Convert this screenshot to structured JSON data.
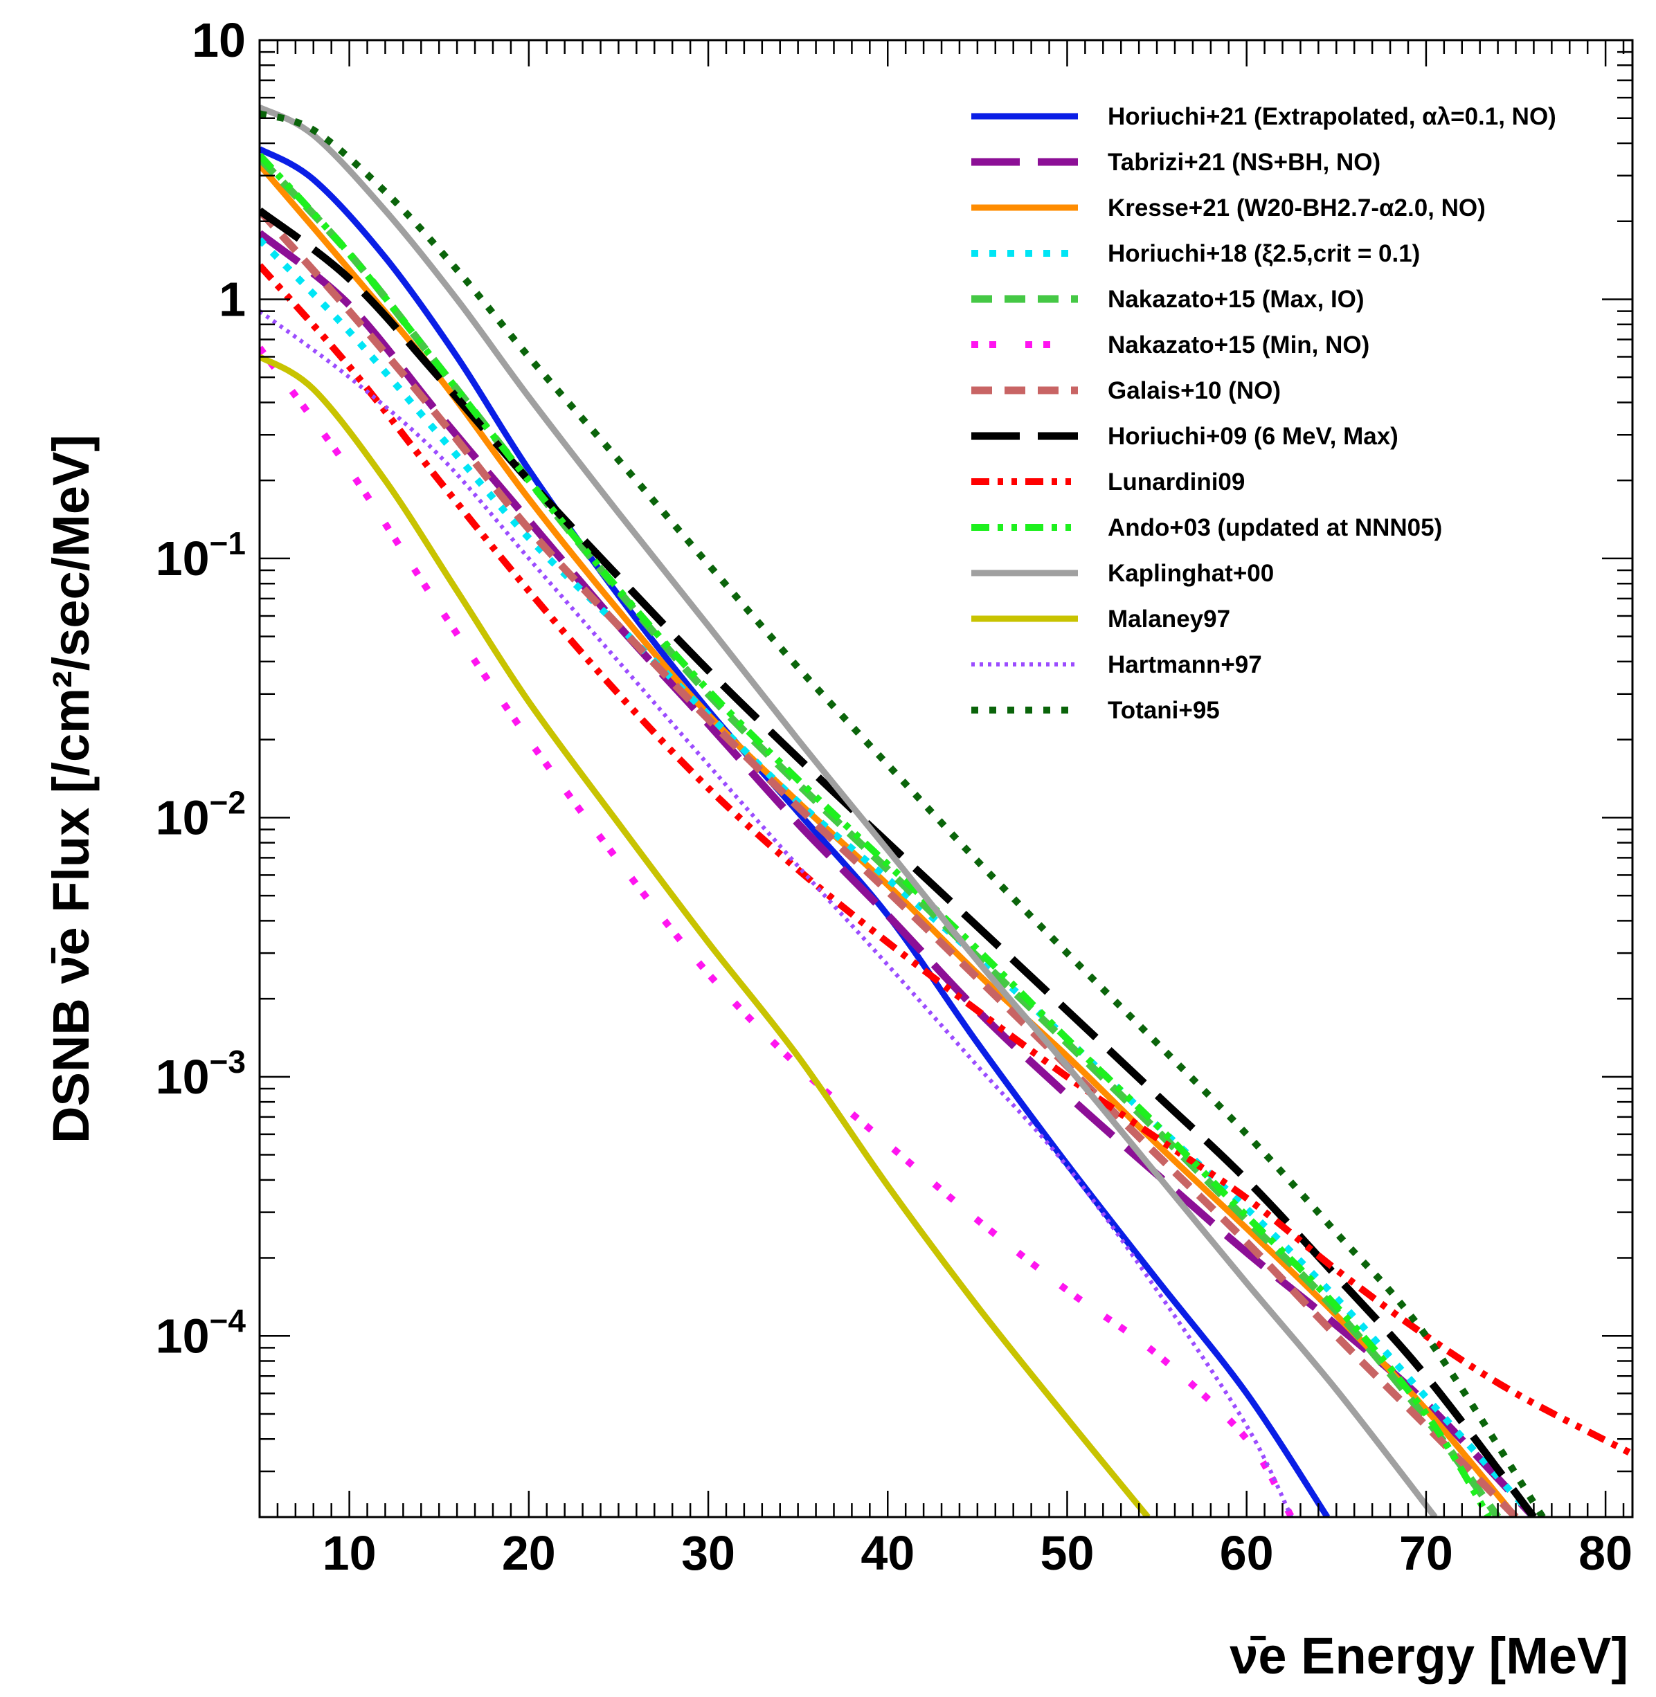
{
  "chart_data": {
    "type": "line",
    "title": "",
    "xlabel": "ν̄e Energy [MeV]",
    "ylabel": "DSNB ν̄e Flux [/cm²/sec/MeV]",
    "xlim": [
      5,
      81.5
    ],
    "ylim": [
      2e-05,
      10
    ],
    "yscale": "log",
    "grid": false,
    "legend_position": "top-right",
    "x_ticks": [
      "10",
      "20",
      "30",
      "40",
      "50",
      "60",
      "70",
      "80"
    ],
    "y_ticks": [
      {
        "base": "10",
        "exp": "−4"
      },
      {
        "base": "10",
        "exp": "−3"
      },
      {
        "base": "10",
        "exp": "−2"
      },
      {
        "base": "10",
        "exp": "−1"
      },
      {
        "base": "1",
        "exp": ""
      },
      {
        "base": "10",
        "exp": ""
      }
    ],
    "series": [
      {
        "name": "Horiuchi+21 (Extrapolated, αλ=0.1, NO)",
        "color": "#0a1ee6",
        "style": "solid",
        "x": [
          5,
          8,
          12,
          16,
          20,
          25,
          30,
          35,
          40,
          45,
          50,
          55,
          60,
          64.5
        ],
        "y": [
          3.8,
          2.9,
          1.45,
          0.6,
          0.22,
          0.072,
          0.026,
          0.0105,
          0.0042,
          0.00135,
          0.00046,
          0.000165,
          6e-05,
          2e-05
        ]
      },
      {
        "name": "Tabrizi+21 (NS+BH, NO)",
        "color": "#8c0f96",
        "style": "longdash",
        "x": [
          5,
          10,
          15,
          20,
          25,
          30,
          35,
          40,
          45,
          50,
          55,
          60,
          65,
          70,
          76
        ],
        "y": [
          1.8,
          0.95,
          0.36,
          0.14,
          0.055,
          0.023,
          0.0095,
          0.0042,
          0.0018,
          0.00085,
          0.00042,
          0.00021,
          0.00011,
          5.5e-05,
          2e-05
        ]
      },
      {
        "name": "Kresse+21 (W20-BH2.7-α2.0, NO)",
        "color": "#ff8c00",
        "style": "solid",
        "x": [
          5,
          10,
          15,
          20,
          25,
          30,
          35,
          40,
          45,
          50,
          55,
          60,
          65,
          70,
          75
        ],
        "y": [
          3.3,
          1.3,
          0.5,
          0.17,
          0.063,
          0.025,
          0.0115,
          0.0055,
          0.0025,
          0.0012,
          0.00055,
          0.00026,
          0.00012,
          5.2e-05,
          2e-05
        ]
      },
      {
        "name": "Horiuchi+18 (ξ2.5,crit = 0.1)",
        "color": "#00e5f5",
        "style": "dotted",
        "x": [
          5,
          10,
          15,
          20,
          25,
          30,
          35,
          40,
          45,
          50,
          55,
          60,
          65,
          70,
          76
        ],
        "y": [
          1.7,
          0.75,
          0.3,
          0.12,
          0.055,
          0.025,
          0.0115,
          0.0058,
          0.0029,
          0.0014,
          0.00065,
          0.00031,
          0.00014,
          5.8e-05,
          2e-05
        ]
      },
      {
        "name": "Nakazato+15 (Max, IO)",
        "color": "#45c845",
        "style": "dashed",
        "x": [
          5,
          10,
          15,
          20,
          25,
          30,
          35,
          40,
          45,
          50,
          55,
          60,
          65,
          70,
          74
        ],
        "y": [
          3.5,
          1.5,
          0.55,
          0.2,
          0.075,
          0.03,
          0.0135,
          0.0063,
          0.0029,
          0.00135,
          0.00062,
          0.00028,
          0.000125,
          4.8e-05,
          2e-05
        ]
      },
      {
        "name": "Nakazato+15 (Min, NO)",
        "color": "#ff14f0",
        "style": "dashdot",
        "x": [
          5,
          10,
          15,
          20,
          25,
          30,
          35,
          40,
          45,
          50,
          55,
          60,
          62.5
        ],
        "y": [
          0.65,
          0.22,
          0.065,
          0.02,
          0.0068,
          0.0025,
          0.0011,
          0.00055,
          0.00028,
          0.00015,
          8.5e-05,
          4e-05,
          2e-05
        ]
      },
      {
        "name": "Galais+10 (NO)",
        "color": "#c86464",
        "style": "dashed",
        "x": [
          5,
          10,
          15,
          20,
          25,
          30,
          35,
          40,
          45,
          50,
          55,
          60,
          65,
          70,
          75
        ],
        "y": [
          2.2,
          0.9,
          0.35,
          0.13,
          0.055,
          0.024,
          0.011,
          0.0052,
          0.0024,
          0.0011,
          0.0005,
          0.00023,
          0.0001,
          4.5e-05,
          2e-05
        ]
      },
      {
        "name": "Horiuchi+09 (6 MeV, Max)",
        "color": "#000000",
        "style": "longdash",
        "x": [
          5,
          10,
          15,
          20,
          25,
          30,
          35,
          40,
          45,
          50,
          55,
          60,
          65,
          70,
          76
        ],
        "y": [
          2.2,
          1.2,
          0.5,
          0.2,
          0.085,
          0.037,
          0.017,
          0.008,
          0.0038,
          0.0018,
          0.00085,
          0.0004,
          0.00017,
          7e-05,
          2e-05
        ]
      },
      {
        "name": "Lunardini09",
        "color": "#ff0000",
        "style": "dashdotdot",
        "x": [
          5,
          10,
          15,
          20,
          25,
          30,
          35,
          40,
          45,
          50,
          55,
          60,
          65,
          70,
          75,
          81.5
        ],
        "y": [
          1.35,
          0.55,
          0.2,
          0.075,
          0.03,
          0.013,
          0.0063,
          0.0033,
          0.0018,
          0.001,
          0.00058,
          0.00034,
          0.00018,
          0.0001,
          6e-05,
          3.5e-05
        ]
      },
      {
        "name": "Ando+03 (updated at NNN05)",
        "color": "#1ef01e",
        "style": "dashdotdot",
        "x": [
          5,
          10,
          15,
          20,
          25,
          30,
          35,
          40,
          45,
          50,
          55,
          60,
          65,
          70,
          73.5
        ],
        "y": [
          3.6,
          1.5,
          0.55,
          0.2,
          0.076,
          0.031,
          0.014,
          0.0066,
          0.0031,
          0.0014,
          0.00065,
          0.00029,
          0.00013,
          5e-05,
          2e-05
        ]
      },
      {
        "name": "Kaplinghat+00",
        "color": "#a0a0a0",
        "style": "solid",
        "x": [
          5,
          8,
          12,
          16,
          20,
          25,
          30,
          35,
          40,
          45,
          50,
          55,
          60,
          65,
          70.5
        ],
        "y": [
          5.5,
          4.3,
          2.2,
          1.0,
          0.42,
          0.15,
          0.055,
          0.02,
          0.0075,
          0.0028,
          0.0011,
          0.00042,
          0.00016,
          6.2e-05,
          2e-05
        ]
      },
      {
        "name": "Malaney97",
        "color": "#c8c300",
        "style": "solid",
        "x": [
          5,
          8,
          12,
          16,
          20,
          25,
          30,
          35,
          40,
          45,
          50,
          54.5
        ],
        "y": [
          0.6,
          0.45,
          0.2,
          0.075,
          0.028,
          0.0095,
          0.0033,
          0.0012,
          0.00038,
          0.00013,
          4.8e-05,
          2e-05
        ]
      },
      {
        "name": "Hartmann+97",
        "color": "#9b4cff",
        "style": "finedotted",
        "x": [
          5,
          10,
          15,
          20,
          25,
          30,
          35,
          40,
          45,
          50,
          55,
          60,
          62.5
        ],
        "y": [
          0.9,
          0.5,
          0.25,
          0.1,
          0.04,
          0.016,
          0.0065,
          0.0027,
          0.0011,
          0.00045,
          0.00015,
          4.5e-05,
          2e-05
        ]
      },
      {
        "name": "Totani+95",
        "color": "#0a640a",
        "style": "dotted",
        "x": [
          5,
          8,
          12,
          16,
          20,
          25,
          30,
          35,
          40,
          45,
          50,
          55,
          60,
          65,
          70,
          76.5
        ],
        "y": [
          5.2,
          4.5,
          2.6,
          1.3,
          0.6,
          0.24,
          0.095,
          0.038,
          0.016,
          0.0068,
          0.003,
          0.00135,
          0.0006,
          0.00025,
          0.0001,
          2e-05
        ]
      }
    ]
  }
}
